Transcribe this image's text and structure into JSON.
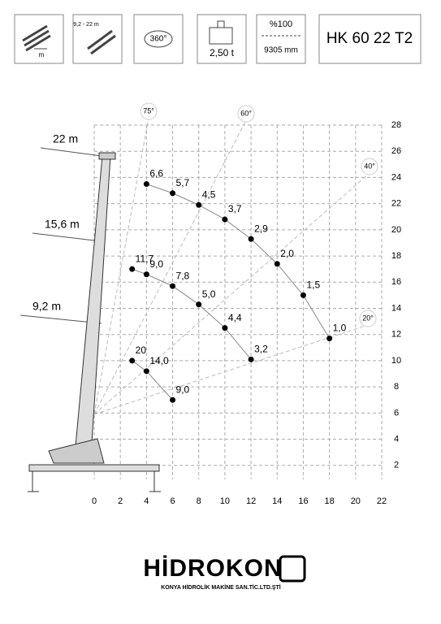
{
  "header": {
    "boxes": [
      "m",
      "9,2 - 22 m",
      "360°",
      "2,50 t",
      "%100",
      "9305 mm",
      "HK 60 22 T2"
    ]
  },
  "chart_data": {
    "type": "scatter",
    "xlim": [
      0,
      22
    ],
    "xticks": [
      0,
      2,
      4,
      6,
      8,
      10,
      12,
      14,
      16,
      18,
      20,
      22
    ],
    "ylim": [
      0,
      28
    ],
    "yticks": [
      2,
      4,
      6,
      8,
      10,
      12,
      14,
      16,
      18,
      20,
      22,
      24,
      26,
      28
    ],
    "grid": true,
    "annotations": [
      "75°",
      "60°",
      "40°",
      "20°"
    ],
    "series": [
      {
        "name": "22 m",
        "color": "#000000",
        "x": [
          4,
          6,
          8,
          10,
          12,
          14,
          16,
          18
        ],
        "values": [
          23.5,
          22.8,
          21.9,
          20.8,
          19.3,
          17.4,
          15.0,
          11.7
        ],
        "value_labels": [
          "6,6",
          "5,7",
          "4,5",
          "3,7",
          "2,9",
          "2,0",
          "1,5",
          "1,0"
        ]
      },
      {
        "name": "15,6 m",
        "color": "#000000",
        "x": [
          2.9,
          4,
          6,
          8,
          10,
          12
        ],
        "values": [
          17.0,
          16.6,
          15.7,
          14.3,
          12.5,
          10.1
        ],
        "value_labels": [
          "11,7",
          "9,0",
          "7,8",
          "5,0",
          "4,4",
          "3,2"
        ]
      },
      {
        "name": "9,2 m",
        "color": "#000000",
        "x": [
          2.9,
          4,
          6
        ],
        "values": [
          10.0,
          9.2,
          7.0
        ],
        "value_labels": [
          "20",
          "14,0",
          "9,0"
        ]
      }
    ]
  },
  "footer": {
    "logo": "HİDROKON",
    "company": "KONYA HİDROLİK MAKİNE SAN.TİC.LTD.ŞTİ"
  }
}
